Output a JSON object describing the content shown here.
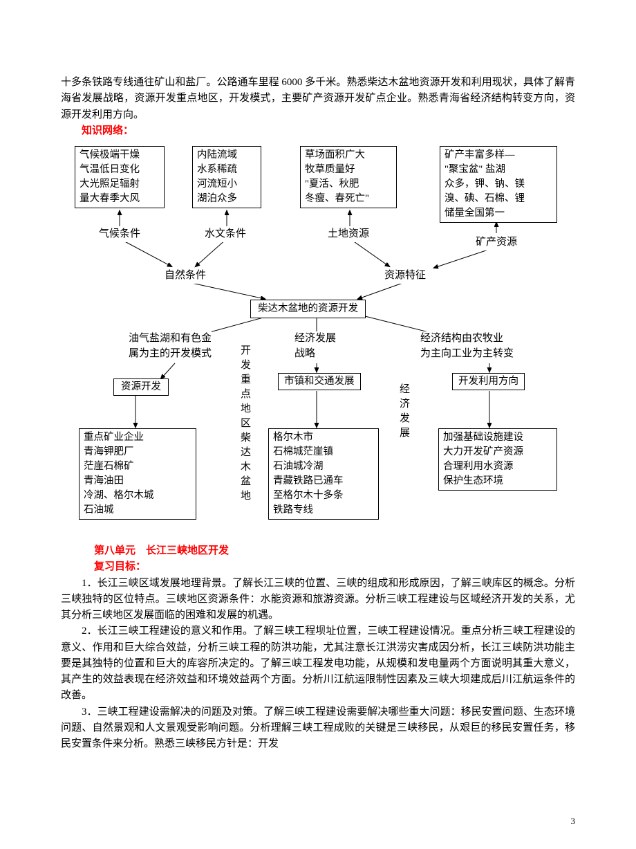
{
  "intro_text": "十多条铁路专线通往矿山和盐厂。公路通车里程 6000 多千米。熟悉柴达木盆地资源开发和利用现状，具体了解青海省发展战略，资源开发重点地区，开发模式，主要矿产资源开发矿点企业。熟悉青海省经济结构转变方向，资源开发利用方向。",
  "knowledge_label": "知识网络：",
  "diagram": {
    "box_climate": "气候极端干燥\n气温低日变化\n大光照足辐射\n量大春季大风",
    "box_hydro": "内陆流域\n水系稀疏\n河流短小\n湖泊众多",
    "box_grass": "草场面积广大\n牧草质量好\n\"夏活、秋肥\n冬瘦、春死亡\"",
    "box_mineral": "矿产丰富多样—\n\"聚宝盆\" 盐湖\n众多，钾、钠、镁\n溴、碘、石棉、锂\n储量全国第一",
    "lbl_climate": "气候条件",
    "lbl_hydro": "水文条件",
    "lbl_land": "土地资源",
    "lbl_mineral": "矿产资源",
    "lbl_nature": "自然条件",
    "lbl_resource": "资源特征",
    "box_center": "柴达木盆地的资源开发",
    "lbl_oilgas": "油气盐湖和有色金\n属为主的开发模式",
    "lbl_econdev": "经济发展\n战略",
    "lbl_econstruct": "经济结构由农牧业\n为主向工业为主转变",
    "box_resdev": "资源开发",
    "box_town": "市镇和交通发展",
    "box_usedir": "开发利用方向",
    "box_enterprise": "重点矿业企业\n青海钾肥厂\n茫崖石棉矿\n青海油田\n冷湖、格尔木城\n石油城",
    "box_geermu": "格尔木市\n石棉城茫崖镇\n石油城冷湖\n青藏铁路已通车\n至格尔木十多条\n铁路专线",
    "box_infra": "加强基础设施建设\n大力开发矿产资源\n合理利用水资源\n保护生态环境",
    "v_devregion": "开发重点地区柴达木盆地",
    "v_econdev": "经济发展"
  },
  "unit_title": "第八单元　长江三峡地区开发",
  "review_label": "复习目标：",
  "p1": "1．长江三峡区域发展地理背景。了解长江三峡的位置、三峡的组成和形成原因，了解三峡库区的概念。分析三峡独特的区位特点。三峡地区资源条件：水能资源和旅游资源。分析三峡工程建设与区域经济开发的关系，尤其分析三峡地区发展面临的困难和发展的机遇。",
  "p2": "2．长江三峡工程建设的意义和作用。了解三峡工程坝址位置，三峡工程建设情况。重点分析三峡工程建设的意义、作用和巨大综合效益，分析三峡工程的防洪功能，尤其注意长江洪涝灾害成因分析，长江三峡防洪功能主要是其独特的位置和巨大的库容所决定的。了解三峡工程发电功能，从规模和发电量两个方面说明其重大意义，其产生的效益表现在经济效益和环境效益两个方面。分析川江航运限制性因素及三峡大坝建成后川江航运条件的改善。",
  "p3": "3．三峡工程建设需解决的问题及对策。了解三峡工程建设需要解决哪些重大问题：移民安置问题、生态环境问题、自然景观和人文景观受影响问题。分析理解三峡工程成败的关键是三峡移民，从艰巨的移民安置任务，移民安置条件来分析。熟悉三峡移民方针是：开发",
  "page_number": "3"
}
